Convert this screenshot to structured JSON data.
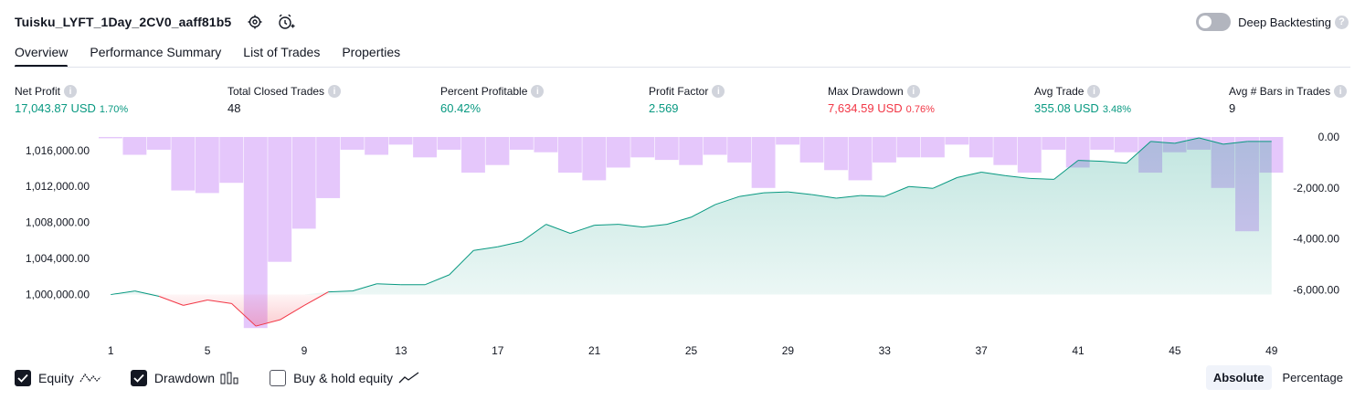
{
  "header": {
    "title": "Tuisku_LYFT_1Day_2CV0_aaff81b5",
    "deep_backtesting_label": "Deep Backtesting"
  },
  "tabs": [
    {
      "label": "Overview",
      "active": true
    },
    {
      "label": "Performance Summary",
      "active": false
    },
    {
      "label": "List of Trades",
      "active": false
    },
    {
      "label": "Properties",
      "active": false
    }
  ],
  "metrics": {
    "net_profit": {
      "label": "Net Profit",
      "value": "17,043.87 USD",
      "pct": "1.70%"
    },
    "total_closed_trades": {
      "label": "Total Closed Trades",
      "value": "48"
    },
    "percent_profitable": {
      "label": "Percent Profitable",
      "value": "60.42%"
    },
    "profit_factor": {
      "label": "Profit Factor",
      "value": "2.569"
    },
    "max_drawdown": {
      "label": "Max Drawdown",
      "value": "7,634.59 USD",
      "pct": "0.76%"
    },
    "avg_trade": {
      "label": "Avg Trade",
      "value": "355.08 USD",
      "pct": "3.48%"
    },
    "avg_bars": {
      "label": "Avg # Bars in Trades",
      "value": "9"
    }
  },
  "colors": {
    "green": "#089981",
    "red": "#f23645",
    "drawdown_bar": "#e1bdfa",
    "equity_fill": "#d9f1ea"
  },
  "legend": {
    "equity": {
      "label": "Equity",
      "checked": true
    },
    "drawdown": {
      "label": "Drawdown",
      "checked": true
    },
    "buy_hold": {
      "label": "Buy & hold equity",
      "checked": false
    }
  },
  "mode": {
    "absolute_label": "Absolute",
    "percentage_label": "Percentage",
    "active": "absolute"
  },
  "chart_data": {
    "type": "line",
    "x_tick_labels": [
      "1",
      "5",
      "9",
      "13",
      "17",
      "21",
      "25",
      "29",
      "33",
      "37",
      "41",
      "45",
      "49"
    ],
    "left_axis_labels": [
      "1,016,000.00",
      "1,012,000.00",
      "1,008,000.00",
      "1,004,000.00",
      "1,000,000.00"
    ],
    "right_axis_labels": [
      "0.00",
      "-2,000.00",
      "-4,000.00",
      "-6,000.00"
    ],
    "equity_baseline": 1000000,
    "equity_range": [
      996000,
      1017500
    ],
    "drawdown_range": [
      -7600,
      0
    ],
    "series": [
      {
        "name": "Equity",
        "x": [
          1,
          2,
          3,
          4,
          5,
          6,
          7,
          8,
          9,
          10,
          11,
          12,
          13,
          14,
          15,
          16,
          17,
          18,
          19,
          20,
          21,
          22,
          23,
          24,
          25,
          26,
          27,
          28,
          29,
          30,
          31,
          32,
          33,
          34,
          35,
          36,
          37,
          38,
          39,
          40,
          41,
          42,
          43,
          44,
          45,
          46,
          47,
          48,
          49
        ],
        "values": [
          1000000,
          1000400,
          999800,
          998800,
          999400,
          999000,
          996500,
          997200,
          998800,
          1000300,
          1000400,
          1001200,
          1001100,
          1001100,
          1002200,
          1004900,
          1005300,
          1005900,
          1007800,
          1006800,
          1007700,
          1007800,
          1007500,
          1007800,
          1008600,
          1010000,
          1010900,
          1011300,
          1011400,
          1011100,
          1010700,
          1011000,
          1010900,
          1012000,
          1011800,
          1013000,
          1013600,
          1013200,
          1012900,
          1012800,
          1014900,
          1014800,
          1014600,
          1017000,
          1016800,
          1017400,
          1016700,
          1017000,
          1017000
        ]
      },
      {
        "name": "Drawdown",
        "x": [
          1,
          2,
          3,
          4,
          5,
          6,
          7,
          8,
          9,
          10,
          11,
          12,
          13,
          14,
          15,
          16,
          17,
          18,
          19,
          20,
          21,
          22,
          23,
          24,
          25,
          26,
          27,
          28,
          29,
          30,
          31,
          32,
          33,
          34,
          35,
          36,
          37,
          38,
          39,
          40,
          41,
          42,
          43,
          44,
          45,
          46,
          47,
          48,
          49
        ],
        "values": [
          -50,
          -700,
          -500,
          -2100,
          -2200,
          -1800,
          -7500,
          -4900,
          -3600,
          -2400,
          -500,
          -700,
          -300,
          -800,
          -500,
          -1400,
          -1100,
          -500,
          -600,
          -1400,
          -1700,
          -1200,
          -800,
          -900,
          -1100,
          -700,
          -1000,
          -2000,
          -300,
          -1000,
          -1300,
          -1700,
          -1000,
          -800,
          -800,
          -300,
          -800,
          -1100,
          -1400,
          -500,
          -1200,
          -500,
          -600,
          -1400,
          -600,
          -500,
          -2000,
          -3700,
          -1400
        ]
      }
    ]
  }
}
